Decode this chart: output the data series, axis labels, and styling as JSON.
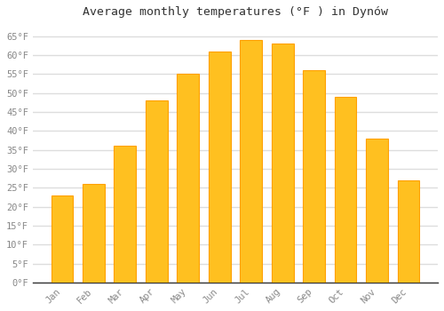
{
  "months": [
    "Jan",
    "Feb",
    "Mar",
    "Apr",
    "May",
    "Jun",
    "Jul",
    "Aug",
    "Sep",
    "Oct",
    "Nov",
    "Dec"
  ],
  "values": [
    23,
    26,
    36,
    48,
    55,
    61,
    64,
    63,
    56,
    49,
    38,
    27
  ],
  "bar_color": "#FFC020",
  "bar_edge_color": "#FFA000",
  "title": "Average monthly temperatures (°F ) in Dynów",
  "title_fontsize": 10,
  "ylim": [
    0,
    68
  ],
  "yticks": [
    0,
    5,
    10,
    15,
    20,
    25,
    30,
    35,
    40,
    45,
    50,
    55,
    60,
    65
  ],
  "ytick_labels": [
    "0°F",
    "5°F",
    "10°F",
    "15°F",
    "20°F",
    "25°F",
    "30°F",
    "35°F",
    "40°F",
    "45°F",
    "50°F",
    "55°F",
    "60°F",
    "65°F"
  ],
  "background_color": "#FFFFFF",
  "grid_color": "#DDDDDD",
  "tick_label_color": "#888888",
  "title_color": "#333333",
  "font_family": "monospace",
  "bar_width": 0.7,
  "tick_fontsize": 7.5,
  "title_fontsize_val": 9.5
}
